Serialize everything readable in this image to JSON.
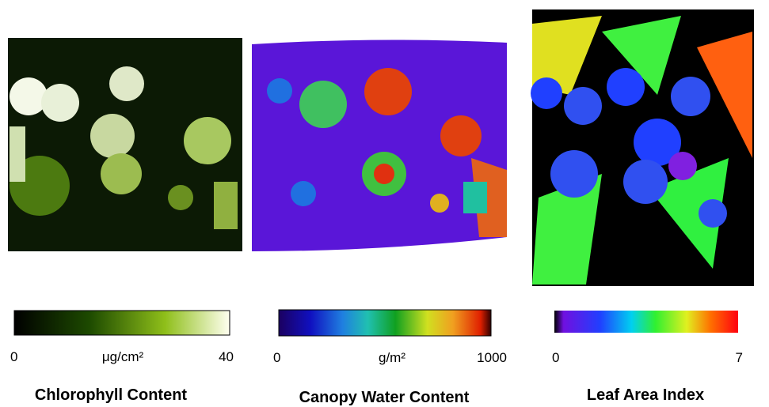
{
  "panels": [
    {
      "title": "Chlorophyll Content",
      "unit": "μg/cm²",
      "min": 0,
      "max": 40
    },
    {
      "title": "Canopy Water Content",
      "unit": "g/m²",
      "min": 0,
      "max": 1000
    },
    {
      "title": "Leaf Area Index",
      "min": 0,
      "max": 7
    }
  ]
}
